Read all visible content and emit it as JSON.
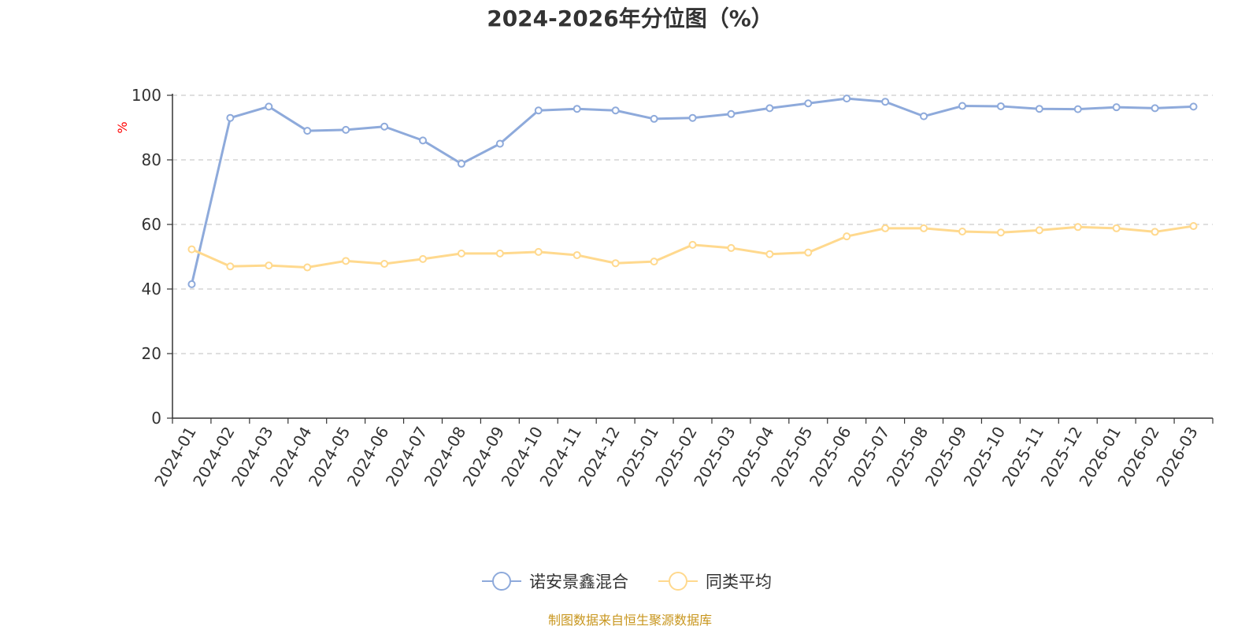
{
  "chart_data": {
    "type": "line",
    "title": "2024-2026年分位图（%）",
    "ylabel": "%",
    "ylim": [
      0,
      100
    ],
    "yticks": [
      0,
      20,
      40,
      60,
      80,
      100
    ],
    "grid": true,
    "legend_position": "bottom",
    "categories": [
      "2024-01",
      "2024-02",
      "2024-03",
      "2024-04",
      "2024-05",
      "2024-06",
      "2024-07",
      "2024-08",
      "2024-09",
      "2024-10",
      "2024-11",
      "2024-12",
      "2025-01",
      "2025-02",
      "2025-03",
      "2025-04",
      "2025-05",
      "2025-06",
      "2025-07",
      "2025-08",
      "2025-09",
      "2025-10",
      "2025-11",
      "2025-12",
      "2026-01",
      "2026-02",
      "2026-03"
    ],
    "series": [
      {
        "name": "诺安景鑫混合",
        "color": "#8eaadb",
        "values": [
          41.5,
          93,
          96.5,
          89,
          89.3,
          90.3,
          86,
          78.8,
          85,
          95.3,
          95.8,
          95.3,
          92.7,
          93,
          94.2,
          96,
          97.5,
          99,
          98,
          93.5,
          96.7,
          96.6,
          95.8,
          95.7,
          96.3,
          96,
          96.5
        ]
      },
      {
        "name": "同类平均",
        "color": "#ffd98e",
        "values": [
          52.3,
          47,
          47.3,
          46.7,
          48.7,
          47.8,
          49.3,
          51,
          51,
          51.5,
          50.5,
          48,
          48.5,
          53.7,
          52.7,
          50.8,
          51.3,
          56.3,
          58.8,
          58.8,
          57.8,
          57.5,
          58.2,
          59.2,
          58.8,
          57.7,
          59.5
        ]
      }
    ]
  },
  "source_note": "制图数据来自恒生聚源数据库"
}
